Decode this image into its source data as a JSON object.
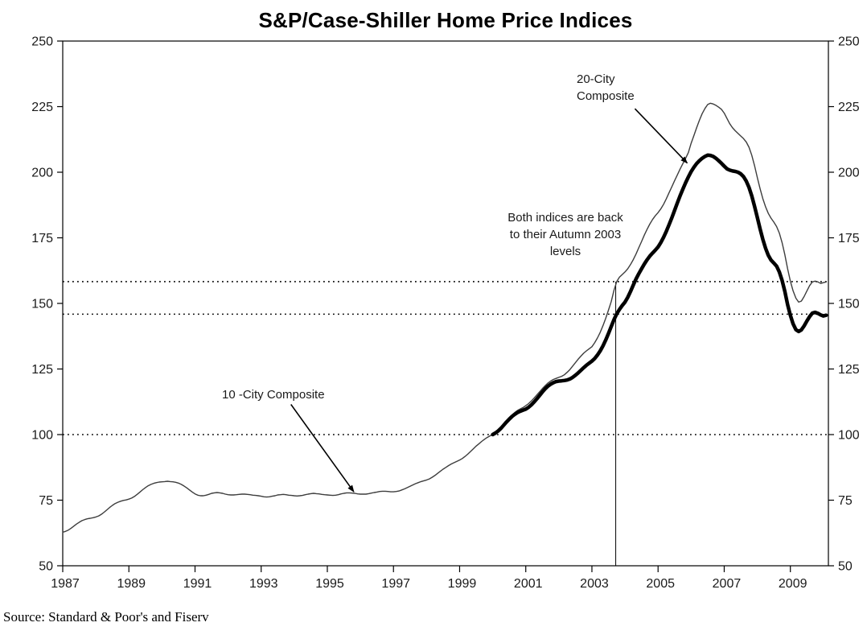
{
  "page": {
    "title": "S&P/Case-Shiller Home Price Indices",
    "source": "Source: Standard & Poor's and Fiserv"
  },
  "chart_data": {
    "type": "line",
    "title": "S&P/Case-Shiller Home Price Indices",
    "xlabel": "",
    "ylabel": "",
    "grid": false,
    "y_axis": {
      "min": 50,
      "max": 250,
      "step": 25,
      "sides": "both",
      "ticks": [
        50,
        75,
        100,
        125,
        150,
        175,
        200,
        225,
        250
      ]
    },
    "x_axis": {
      "min": 1987,
      "max": 2010.15,
      "ticks": [
        1987,
        1989,
        1991,
        1993,
        1995,
        1997,
        1999,
        2001,
        2003,
        2005,
        2007,
        2009
      ]
    },
    "reference_lines": {
      "horizontal_dotted": [
        100,
        145.9,
        158.3
      ],
      "vertical": {
        "x": 2003.72,
        "from": 50,
        "to": 158.3
      }
    },
    "series": [
      {
        "name": "10-City Composite",
        "style": "thin",
        "color": "#3d3d3d",
        "start": 1987.0,
        "interval_years": 0.0833333,
        "values": [
          62.8,
          63.1,
          63.6,
          64.3,
          65.1,
          65.9,
          66.6,
          67.2,
          67.6,
          67.9,
          68.1,
          68.3,
          68.6,
          69.0,
          69.6,
          70.4,
          71.3,
          72.2,
          73.0,
          73.7,
          74.2,
          74.6,
          74.9,
          75.1,
          75.4,
          75.8,
          76.4,
          77.2,
          78.1,
          79.0,
          79.8,
          80.5,
          81.0,
          81.4,
          81.7,
          81.9,
          82.0,
          82.1,
          82.2,
          82.1,
          82.0,
          81.8,
          81.5,
          81.0,
          80.4,
          79.7,
          78.9,
          78.1,
          77.4,
          76.9,
          76.7,
          76.7,
          76.9,
          77.2,
          77.6,
          77.8,
          77.9,
          77.8,
          77.6,
          77.3,
          77.1,
          77.0,
          77.0,
          77.1,
          77.2,
          77.3,
          77.3,
          77.2,
          77.1,
          76.9,
          76.8,
          76.7,
          76.5,
          76.3,
          76.2,
          76.3,
          76.5,
          76.7,
          77.0,
          77.1,
          77.2,
          77.1,
          76.9,
          76.8,
          76.7,
          76.6,
          76.7,
          76.8,
          77.1,
          77.3,
          77.5,
          77.6,
          77.5,
          77.4,
          77.2,
          77.1,
          77.0,
          76.9,
          76.8,
          76.9,
          77.1,
          77.4,
          77.6,
          77.8,
          77.8,
          77.7,
          77.6,
          77.4,
          77.3,
          77.3,
          77.3,
          77.5,
          77.7,
          77.9,
          78.1,
          78.3,
          78.4,
          78.4,
          78.3,
          78.2,
          78.2,
          78.3,
          78.5,
          78.9,
          79.3,
          79.8,
          80.3,
          80.8,
          81.3,
          81.7,
          82.1,
          82.4,
          82.7,
          83.1,
          83.7,
          84.4,
          85.2,
          86.0,
          86.8,
          87.5,
          88.2,
          88.8,
          89.3,
          89.8,
          90.3,
          90.9,
          91.7,
          92.6,
          93.6,
          94.6,
          95.6,
          96.5,
          97.4,
          98.2,
          98.9,
          99.5,
          100.0,
          100.6,
          101.5,
          102.6,
          103.9,
          105.2,
          106.4,
          107.5,
          108.4,
          109.2,
          109.8,
          110.3,
          111.0,
          111.8,
          112.8,
          113.9,
          115.1,
          116.3,
          117.5,
          118.6,
          119.6,
          120.4,
          121.0,
          121.4,
          121.8,
          122.2,
          122.8,
          123.7,
          124.8,
          126.1,
          127.4,
          128.7,
          129.9,
          131.0,
          131.9,
          132.7,
          133.5,
          135.0,
          136.8,
          139.0,
          141.5,
          144.3,
          147.4,
          150.7,
          155.0,
          158.3,
          160.0,
          161.0,
          162.0,
          163.2,
          164.8,
          166.7,
          168.8,
          171.2,
          173.6,
          176.0,
          178.2,
          180.2,
          182.0,
          183.4,
          184.6,
          186.0,
          187.8,
          189.9,
          192.2,
          194.5,
          196.8,
          199.0,
          201.2,
          203.3,
          205.3,
          207.5,
          211.0,
          214.0,
          217.0,
          219.8,
          222.3,
          224.3,
          225.8,
          226.3,
          226.0,
          225.5,
          224.8,
          224.0,
          222.5,
          220.5,
          218.5,
          217.0,
          215.8,
          214.8,
          213.8,
          212.8,
          211.5,
          209.5,
          206.5,
          202.5,
          198.0,
          193.8,
          190.0,
          186.8,
          184.3,
          182.5,
          181.0,
          179.3,
          176.8,
          173.2,
          168.5,
          163.2,
          158.5,
          154.8,
          152.0,
          150.5,
          150.9,
          152.6,
          154.8,
          156.8,
          158.2,
          158.5,
          158.2,
          157.6,
          157.9,
          158.2
        ]
      },
      {
        "name": "20-City Composite",
        "style": "thick",
        "color": "#000000",
        "start": 2000.0,
        "interval_years": 0.0833333,
        "values": [
          100.0,
          100.6,
          101.4,
          102.4,
          103.6,
          104.8,
          105.9,
          106.9,
          107.7,
          108.4,
          108.9,
          109.3,
          109.7,
          110.4,
          111.3,
          112.4,
          113.6,
          114.9,
          116.2,
          117.4,
          118.4,
          119.2,
          119.8,
          120.2,
          120.4,
          120.5,
          120.6,
          120.8,
          121.2,
          121.8,
          122.6,
          123.5,
          124.5,
          125.5,
          126.4,
          127.2,
          128.0,
          129.0,
          130.3,
          131.9,
          133.8,
          136.0,
          138.5,
          141.2,
          143.8,
          146.0,
          147.7,
          149.2,
          150.5,
          152.3,
          154.5,
          157.0,
          159.3,
          161.3,
          163.2,
          165.0,
          166.6,
          168.0,
          169.2,
          170.3,
          171.5,
          173.2,
          175.2,
          177.5,
          180.0,
          182.7,
          185.5,
          188.3,
          191.0,
          193.6,
          196.0,
          198.2,
          200.2,
          201.9,
          203.3,
          204.4,
          205.3,
          206.0,
          206.5,
          206.4,
          206.0,
          205.3,
          204.4,
          203.4,
          202.3,
          201.3,
          200.8,
          200.5,
          200.3,
          200.0,
          199.4,
          198.3,
          196.6,
          194.2,
          191.0,
          187.0,
          182.8,
          178.5,
          174.5,
          171.0,
          168.3,
          166.5,
          165.4,
          164.2,
          162.0,
          158.8,
          154.5,
          149.5,
          145.5,
          142.2,
          140.0,
          139.3,
          139.9,
          141.4,
          143.3,
          145.0,
          146.3,
          146.6,
          146.2,
          145.6,
          145.2,
          145.5
        ]
      }
    ],
    "annotations": [
      {
        "id": "label-20-city",
        "text_lines": [
          "20-City",
          "Composite"
        ],
        "align": "left",
        "arrow_from": [
          2004.3,
          224.2
        ],
        "arrow_to": [
          2005.88,
          203.5
        ]
      },
      {
        "id": "label-both-indices",
        "text_lines": [
          "Both indices are back",
          "to their Autumn 2003",
          "levels"
        ],
        "align": "center"
      },
      {
        "id": "label-10-city",
        "text_lines": [
          "10 -City Composite"
        ],
        "align": "left",
        "arrow_from": [
          1993.9,
          111.5
        ],
        "arrow_to": [
          1995.8,
          78.2
        ]
      }
    ]
  }
}
